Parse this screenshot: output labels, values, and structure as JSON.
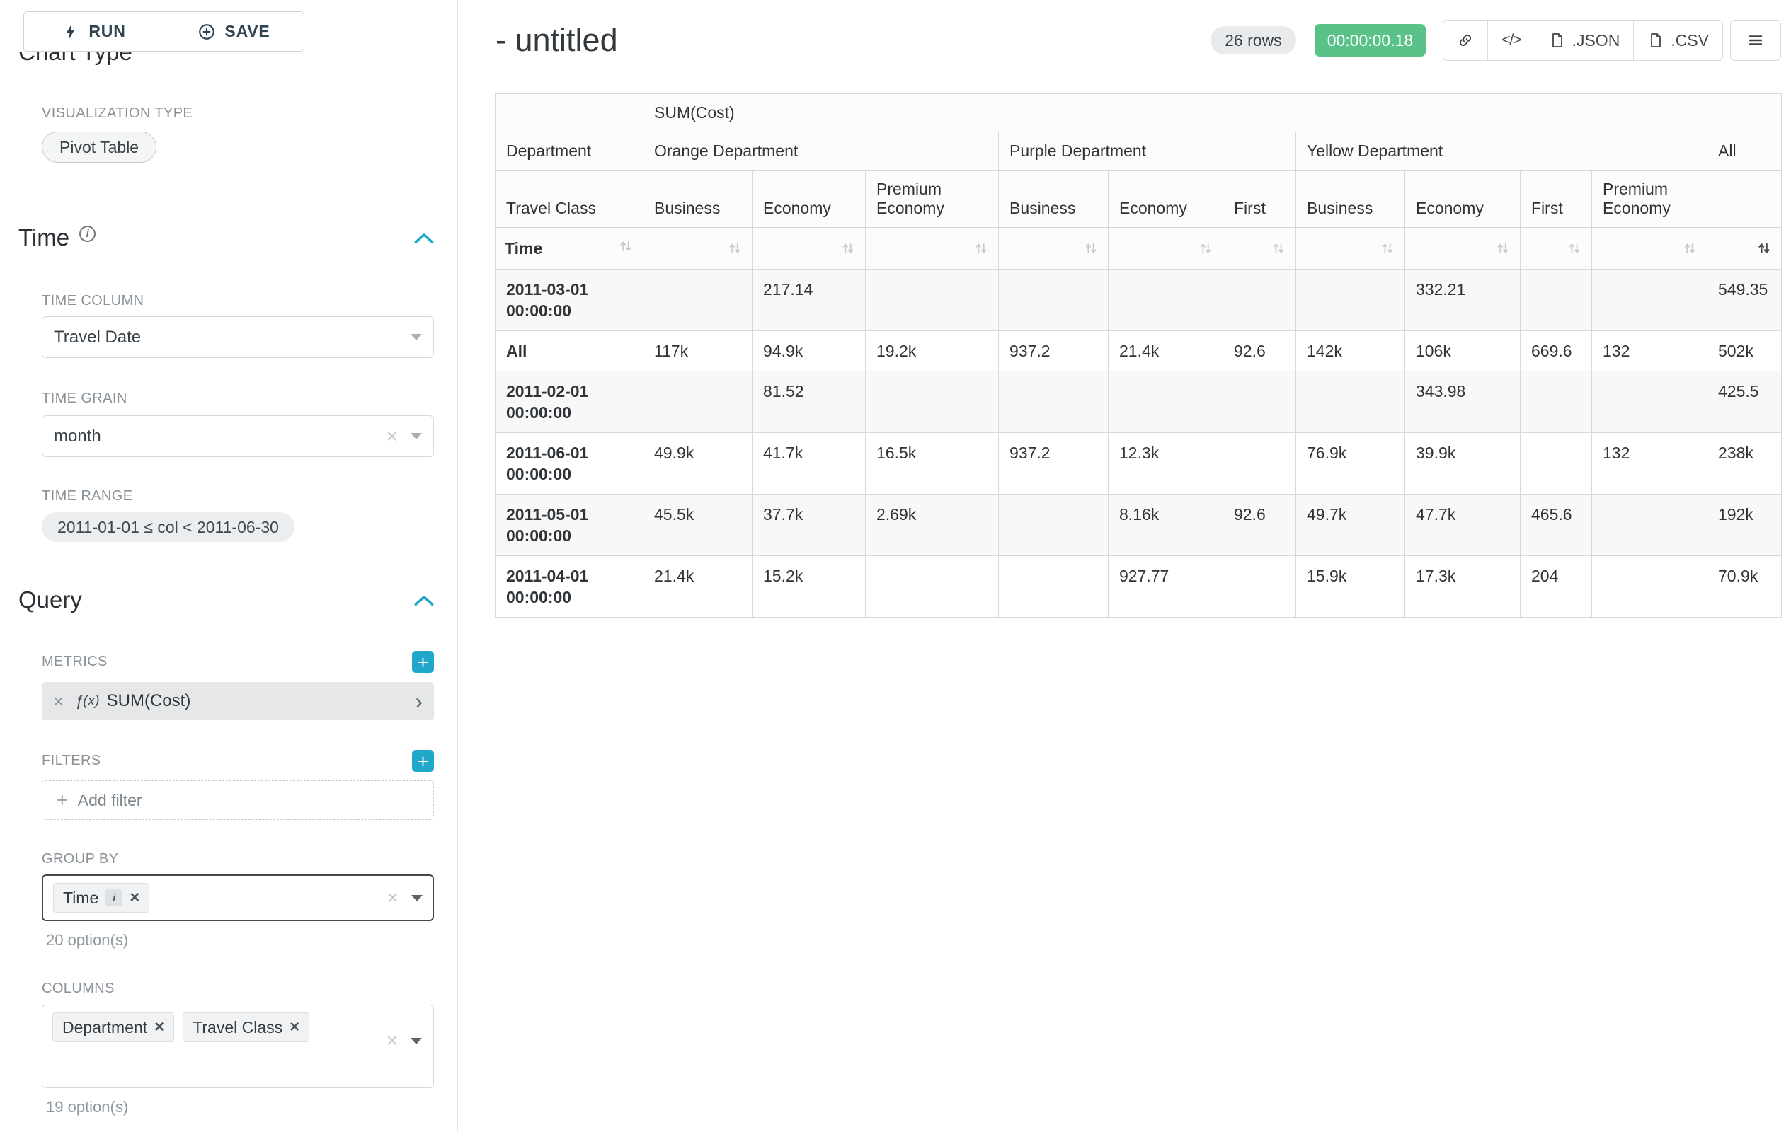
{
  "app": {
    "run_label": "RUN",
    "save_label": "SAVE"
  },
  "sidebar": {
    "chart_type_heading": "Chart Type",
    "visualization_type_label": "VISUALIZATION TYPE",
    "visualization_type_value": "Pivot Table",
    "time": {
      "title": "Time",
      "time_column_label": "TIME COLUMN",
      "time_column_value": "Travel Date",
      "time_grain_label": "TIME GRAIN",
      "time_grain_value": "month",
      "time_range_label": "TIME RANGE",
      "time_range_value": "2011-01-01 ≤ col < 2011-06-30"
    },
    "query": {
      "title": "Query",
      "metrics_label": "METRICS",
      "metric_fx": "ƒ(x)",
      "metric_name": "SUM(Cost)",
      "filters_label": "FILTERS",
      "add_filter_label": "Add filter",
      "group_by_label": "GROUP BY",
      "group_by_chips": [
        {
          "label": "Time",
          "info": true
        }
      ],
      "group_by_options_hint": "20 option(s)",
      "columns_label": "COLUMNS",
      "columns_chips": [
        {
          "label": "Department",
          "info": false
        },
        {
          "label": "Travel Class",
          "info": false
        }
      ],
      "columns_options_hint": "19 option(s)"
    }
  },
  "main": {
    "title": "- untitled",
    "rows_badge": "26 rows",
    "timer": "00:00:00.18",
    "json_button": ".JSON",
    "csv_button": ".CSV"
  },
  "pivot": {
    "metric_header": "SUM(Cost)",
    "department_label": "Department",
    "travel_class_label": "Travel Class",
    "time_label": "Time",
    "all_label": "All",
    "departments": [
      {
        "name": "Orange Department",
        "classes": [
          "Business",
          "Economy",
          "Premium Economy"
        ]
      },
      {
        "name": "Purple Department",
        "classes": [
          "Business",
          "Economy",
          "First"
        ]
      },
      {
        "name": "Yellow Department",
        "classes": [
          "Business",
          "Economy",
          "First",
          "Premium Economy"
        ]
      }
    ],
    "sorted": {
      "column": "All",
      "direction": "desc"
    },
    "rows": [
      {
        "time": "2011-03-01 00:00:00",
        "values": [
          "",
          "217.14",
          "",
          "",
          "",
          "",
          "",
          "332.21",
          "",
          "",
          "549.35"
        ]
      },
      {
        "time": "All",
        "values": [
          "117k",
          "94.9k",
          "19.2k",
          "937.2",
          "21.4k",
          "92.6",
          "142k",
          "106k",
          "669.6",
          "132",
          "502k"
        ]
      },
      {
        "time": "2011-02-01 00:00:00",
        "values": [
          "",
          "81.52",
          "",
          "",
          "",
          "",
          "",
          "343.98",
          "",
          "",
          "425.5"
        ]
      },
      {
        "time": "2011-06-01 00:00:00",
        "values": [
          "49.9k",
          "41.7k",
          "16.5k",
          "937.2",
          "12.3k",
          "",
          "76.9k",
          "39.9k",
          "",
          "132",
          "238k"
        ]
      },
      {
        "time": "2011-05-01 00:00:00",
        "values": [
          "45.5k",
          "37.7k",
          "2.69k",
          "",
          "8.16k",
          "92.6",
          "49.7k",
          "47.7k",
          "465.6",
          "",
          "192k"
        ]
      },
      {
        "time": "2011-04-01 00:00:00",
        "values": [
          "21.4k",
          "15.2k",
          "",
          "",
          "927.77",
          "",
          "15.9k",
          "17.3k",
          "204",
          "",
          "70.9k"
        ]
      }
    ]
  },
  "colors": {
    "accent": "#20a7c9",
    "timer_green": "#5ac189"
  }
}
